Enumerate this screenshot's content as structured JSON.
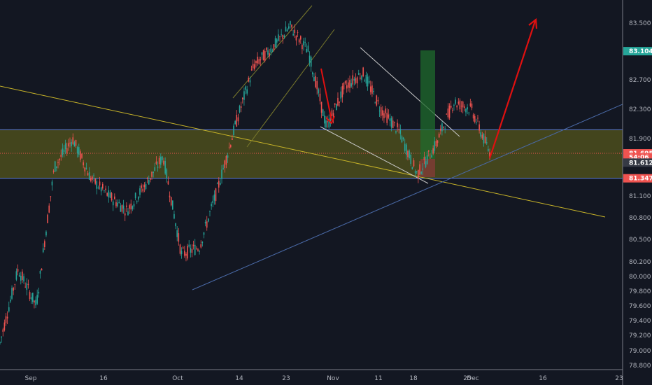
{
  "chart_data": {
    "type": "candlestick",
    "title": "",
    "xlabel": "",
    "ylabel": "",
    "y_scale": "linear",
    "ylim": [
      78.7,
      83.65
    ],
    "grid": false,
    "x_ticks": [
      "Sep",
      "16",
      "Oct",
      "14",
      "23",
      "Nov",
      "11",
      "18",
      "25",
      "Dec",
      "16",
      "23"
    ],
    "y_ticks": [
      "83.500",
      "82.700",
      "82.300",
      "81.900",
      "81.100",
      "80.800",
      "80.500",
      "80.200",
      "80.000",
      "79.800",
      "79.600",
      "79.400",
      "79.200",
      "79.000",
      "78.800"
    ],
    "price_badges": [
      {
        "id": "last",
        "label": "83.104",
        "value": 83.104,
        "color": "#26a69a"
      },
      {
        "id": "mid",
        "label": "81.695",
        "value": 81.695,
        "color": "#ef5350"
      },
      {
        "id": "countdown",
        "label": "54:06",
        "value": 81.64,
        "color": "#ef5350"
      },
      {
        "id": "current",
        "label": "81.612",
        "value": 81.612,
        "color": "#363a45"
      },
      {
        "id": "low",
        "label": "81.347",
        "value": 81.347,
        "color": "#ef5350"
      }
    ],
    "zone": {
      "top": 82.02,
      "bottom": 81.347,
      "color": "#6b6b1a"
    },
    "series": [
      {
        "type": "ohlc_path",
        "x": [
          "Aug 28",
          "Sep 2",
          "Sep 6",
          "Sep 10",
          "Sep 13",
          "Sep 17",
          "Sep 20",
          "Sep 24",
          "Sep 27",
          "Oct 1",
          "Oct 4",
          "Oct 7",
          "Oct 10",
          "Oct 14",
          "Oct 17",
          "Oct 21",
          "Oct 24",
          "Oct 28",
          "Nov 1",
          "Nov 5",
          "Nov 8",
          "Nov 12",
          "Nov 15",
          "Nov 19",
          "Nov 22",
          "Nov 26",
          "Nov 29",
          "Dec 2"
        ],
        "close": [
          79.1,
          80.1,
          79.6,
          81.5,
          81.9,
          81.35,
          81.1,
          80.9,
          81.25,
          81.65,
          80.3,
          80.4,
          81.2,
          82.1,
          82.9,
          83.15,
          83.45,
          83.1,
          82.05,
          82.6,
          82.8,
          82.3,
          82.0,
          81.4,
          81.8,
          82.4,
          82.3,
          81.7
        ]
      }
    ]
  }
}
